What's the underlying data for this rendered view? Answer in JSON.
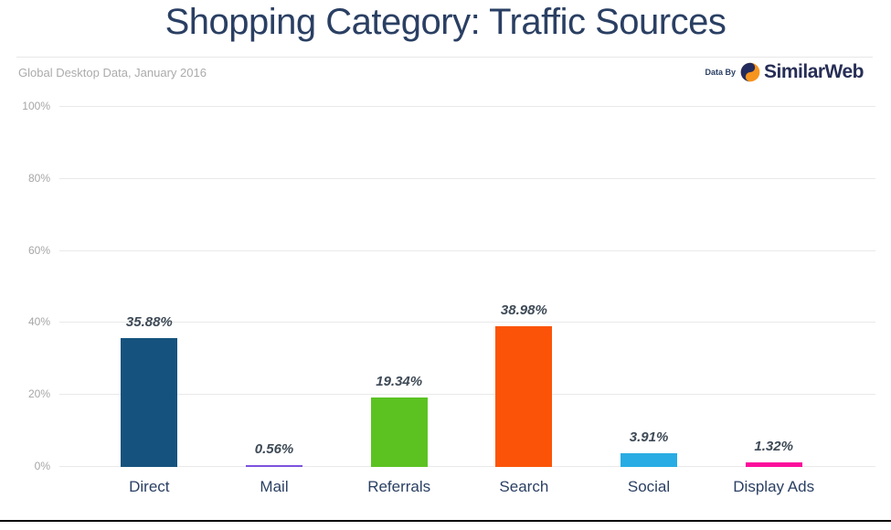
{
  "header": {
    "title": "Shopping Category: Traffic Sources",
    "subtitle": "Global Desktop Data, January 2016",
    "branding": {
      "prefix": "Data By",
      "brand": "SimilarWeb",
      "icon": "similarweb-swirl-icon",
      "brand_color": "#272E56",
      "icon_navy": "#232C5C",
      "icon_orange": "#F7941E"
    }
  },
  "chart_data": {
    "type": "bar",
    "title": "Shopping Category: Traffic Sources",
    "subtitle": "Global Desktop Data, January 2016",
    "categories": [
      "Direct",
      "Mail",
      "Referrals",
      "Search",
      "Social",
      "Display Ads"
    ],
    "values": [
      35.88,
      0.56,
      19.34,
      38.98,
      3.91,
      1.32
    ],
    "value_labels": [
      "35.88%",
      "0.56%",
      "19.34%",
      "38.98%",
      "3.91%",
      "1.32%"
    ],
    "bar_colors": [
      "#15537E",
      "#7B52DE",
      "#5BC222",
      "#FB5408",
      "#29ACE3",
      "#FB0F9B"
    ],
    "xlabel": "",
    "ylabel": "",
    "ylim": [
      0,
      100
    ],
    "yticks": [
      "0%",
      "20%",
      "40%",
      "60%",
      "80%",
      "100%"
    ],
    "grid": true,
    "legend": false
  },
  "colors": {
    "title_navy": "#2A3F63",
    "axis_tick_gray": "#A6A6A6",
    "subtitle_gray": "#ABABAB",
    "gridline": "#E9E9E9",
    "value_label": "#3E4A56",
    "bottom_rule": "#000000"
  }
}
